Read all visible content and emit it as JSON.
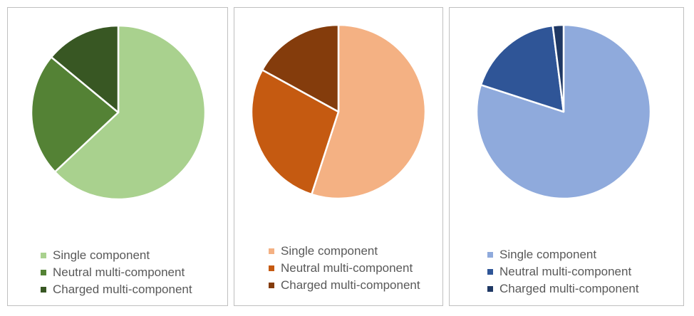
{
  "chart_data": [
    {
      "type": "pie",
      "categories": [
        "Single component",
        "Neutral multi-component",
        "Charged multi-component"
      ],
      "values": [
        63,
        23,
        14
      ],
      "colors": [
        "#a9d18e",
        "#548235",
        "#385723"
      ],
      "legend_position": "bottom-left"
    },
    {
      "type": "pie",
      "categories": [
        "Single component",
        "Neutral multi-component",
        "Charged multi-component"
      ],
      "values": [
        55,
        28,
        17
      ],
      "colors": [
        "#f4b183",
        "#c55a11",
        "#843c0c"
      ],
      "legend_position": "bottom-left"
    },
    {
      "type": "pie",
      "categories": [
        "Single component",
        "Neutral multi-component",
        "Charged multi-component"
      ],
      "values": [
        80,
        18,
        2
      ],
      "colors": [
        "#8faadc",
        "#2f5597",
        "#1f3864"
      ],
      "legend_position": "bottom-left"
    }
  ]
}
